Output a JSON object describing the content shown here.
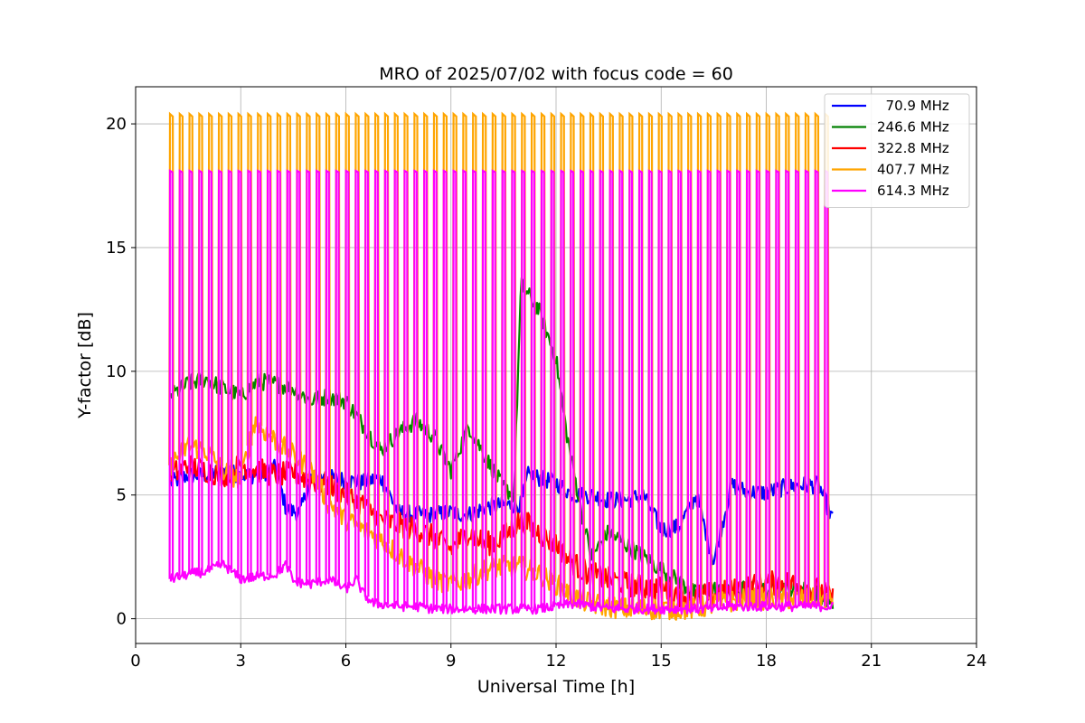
{
  "chart_data": {
    "type": "line",
    "title": "MRO of 2025/07/02 with focus code = 60",
    "xlabel": "Universal Time [h]",
    "ylabel": "Y-factor [dB]",
    "xlim": [
      0,
      24
    ],
    "ylim": [
      -1,
      21.5
    ],
    "xticks": [
      0,
      3,
      6,
      9,
      12,
      15,
      18,
      21,
      24
    ],
    "yticks": [
      0,
      5,
      10,
      15,
      20
    ],
    "grid": true,
    "legend_position": "top-right",
    "series": [
      {
        "name": "  70.9 MHz",
        "color": "#0000ff",
        "x": [
          1,
          1.5,
          2,
          2.5,
          3,
          3.5,
          4,
          4.3,
          4.7,
          5,
          5.5,
          6,
          6.5,
          7,
          7.5,
          8,
          8.5,
          9,
          9.5,
          10,
          10.5,
          11,
          11.2,
          11.5,
          12,
          12.5,
          13,
          13.5,
          14,
          14.5,
          15,
          15.5,
          16,
          16.5,
          17,
          17.5,
          18,
          18.5,
          19,
          19.5,
          19.9
        ],
        "values": [
          5.5,
          5.8,
          5.8,
          6.0,
          5.8,
          5.8,
          6.1,
          4.4,
          4.3,
          5.7,
          5.7,
          5.6,
          5.5,
          5.7,
          4.3,
          4.2,
          4.2,
          4.3,
          4.2,
          4.5,
          4.6,
          4.6,
          5.8,
          5.7,
          5.5,
          5.0,
          5.0,
          4.8,
          4.8,
          5.0,
          3.6,
          3.7,
          5.0,
          2.3,
          5.4,
          5.1,
          5.1,
          5.3,
          5.4,
          5.4,
          4.0
        ]
      },
      {
        "name": "246.6 MHz",
        "color": "#008000",
        "x": [
          1,
          1.5,
          2,
          2.5,
          3,
          3.5,
          4,
          4.5,
          5,
          5.5,
          6,
          6.5,
          7,
          7.5,
          8,
          8.5,
          9,
          9.5,
          10,
          10.5,
          10.8,
          11,
          11.5,
          12,
          12.3,
          12.7,
          13,
          13.5,
          14,
          14.5,
          15,
          15.5,
          16,
          16.5,
          17,
          17.5,
          18,
          18.5,
          19,
          19.5,
          19.9
        ],
        "values": [
          9.0,
          9.5,
          9.7,
          9.3,
          9.0,
          9.6,
          9.5,
          9.3,
          8.8,
          9.0,
          8.8,
          7.8,
          6.8,
          7.5,
          8.0,
          7.4,
          6.0,
          7.8,
          6.5,
          5.3,
          5.0,
          13.5,
          12.5,
          10.5,
          7.5,
          4.5,
          2.5,
          3.5,
          3.0,
          2.5,
          2.0,
          1.5,
          1.0,
          1.2,
          1.0,
          1.3,
          1.1,
          1.3,
          1.2,
          1.0,
          0.7
        ]
      },
      {
        "name": "322.8 MHz",
        "color": "#ff0000",
        "x": [
          1,
          1.5,
          2,
          2.5,
          3,
          3.5,
          4,
          4.5,
          5,
          5.5,
          6,
          6.5,
          7,
          7.5,
          8,
          8.5,
          9,
          9.5,
          10,
          10.5,
          11,
          11.5,
          12,
          12.3,
          12.7,
          13,
          13.5,
          14,
          14.5,
          15,
          15.5,
          16,
          16.5,
          17,
          17.5,
          18,
          18.5,
          19,
          19.5,
          19.9
        ],
        "values": [
          5.8,
          6.2,
          6.0,
          5.8,
          6.2,
          6.0,
          5.8,
          5.9,
          5.6,
          5.4,
          5.0,
          4.6,
          4.0,
          3.8,
          3.6,
          3.3,
          2.8,
          3.5,
          3.0,
          3.3,
          4.0,
          3.5,
          3.0,
          2.5,
          2.0,
          1.8,
          1.6,
          1.4,
          1.3,
          1.2,
          1.0,
          0.9,
          1.0,
          1.1,
          1.3,
          1.4,
          1.5,
          1.3,
          1.2,
          0.8
        ]
      },
      {
        "name": "407.7 MHz",
        "color": "#ffa500",
        "x": [
          1,
          1.5,
          2,
          2.5,
          3,
          3.4,
          3.5,
          4,
          4.5,
          5,
          5.5,
          6,
          6.5,
          7,
          7.5,
          8,
          8.5,
          9,
          9.5,
          10,
          10.5,
          11,
          11.5,
          12,
          12.5,
          13,
          13.5,
          14,
          14.5,
          15,
          15.5,
          16,
          16.5,
          17,
          17.5,
          18,
          18.5,
          19,
          19.5,
          19.9
        ],
        "values": [
          6.2,
          7.0,
          6.8,
          6.0,
          5.6,
          8.0,
          7.8,
          7.2,
          6.6,
          6.0,
          4.7,
          4.0,
          3.6,
          3.2,
          2.6,
          2.1,
          1.6,
          1.4,
          1.6,
          2.0,
          2.1,
          2.1,
          1.8,
          1.4,
          0.9,
          0.6,
          0.5,
          0.4,
          0.4,
          0.4,
          0.4,
          0.4,
          0.6,
          0.7,
          0.8,
          0.8,
          0.8,
          0.8,
          0.8,
          0.8
        ]
      },
      {
        "name": "614.3 MHz",
        "color": "#ff00ff",
        "x": [
          1,
          1.5,
          2,
          2.5,
          3,
          3.5,
          4,
          4.3,
          4.5,
          5,
          5.5,
          6,
          6.3,
          6.5,
          6.8,
          7,
          7.5,
          8,
          8.5,
          9,
          9.5,
          10,
          10.5,
          11,
          11.5,
          12,
          12.5,
          13,
          13.5,
          14,
          14.5,
          15,
          15.5,
          16,
          16.5,
          17,
          17.5,
          18,
          18.5,
          19,
          19.5,
          19.9
        ],
        "values": [
          1.6,
          1.8,
          1.9,
          2.2,
          1.6,
          1.7,
          1.8,
          2.2,
          1.5,
          1.4,
          1.6,
          1.2,
          1.6,
          1.0,
          0.6,
          0.6,
          0.5,
          0.5,
          0.4,
          0.4,
          0.4,
          0.4,
          0.4,
          0.4,
          0.4,
          0.5,
          0.6,
          0.5,
          0.4,
          0.4,
          0.4,
          0.4,
          0.4,
          0.4,
          0.4,
          0.5,
          0.5,
          0.5,
          0.5,
          0.5,
          0.5,
          0.5
        ]
      }
    ],
    "calibration_spikes": {
      "name_ref": "407.7 MHz / 614.3 MHz",
      "x_start": 1.0,
      "x_end": 19.7,
      "count": 68,
      "orange_peak": 20.4,
      "magenta_peak": 18.1
    }
  }
}
